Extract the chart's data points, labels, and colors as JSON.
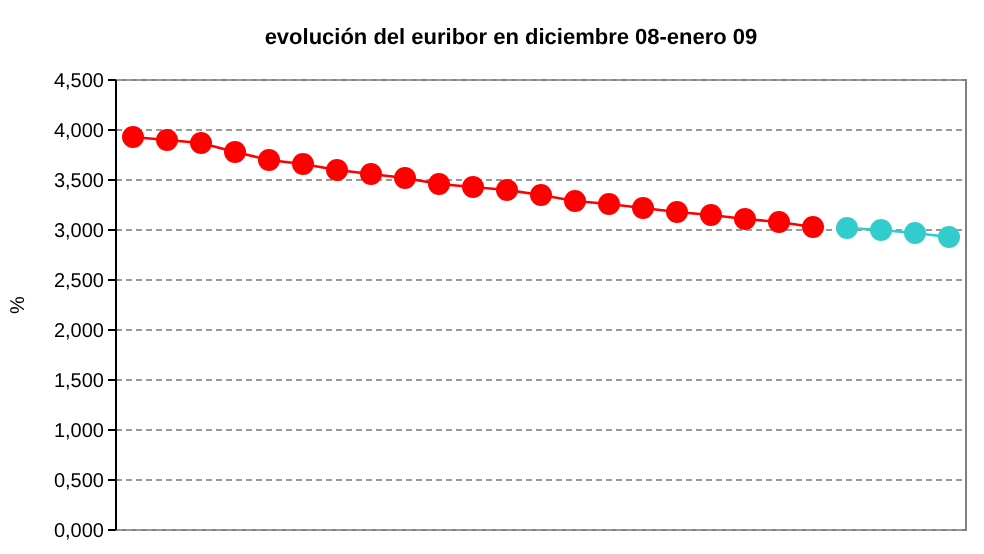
{
  "chart_data": {
    "type": "line",
    "title": "evolución del euribor en diciembre 08-enero 09",
    "ylabel": "%",
    "categories": [
      null,
      null,
      null,
      null,
      null,
      null,
      null,
      null,
      null,
      null,
      null,
      null,
      null,
      null,
      null,
      null,
      null,
      null,
      null,
      null,
      null,
      null,
      null,
      null,
      null
    ],
    "series": [
      {
        "color": "#ff0000",
        "values": [
          3.93,
          3.9,
          3.87,
          3.78,
          3.7,
          3.66,
          3.6,
          3.56,
          3.52,
          3.46,
          3.43,
          3.4,
          3.35,
          3.29,
          3.26,
          3.22,
          3.18,
          3.15,
          3.11,
          3.08,
          3.03,
          null,
          null,
          null,
          null
        ]
      },
      {
        "color": "#33cccc",
        "values": [
          null,
          null,
          null,
          null,
          null,
          null,
          null,
          null,
          null,
          null,
          null,
          null,
          null,
          null,
          null,
          null,
          null,
          null,
          null,
          null,
          null,
          3.02,
          3.0,
          2.97,
          2.93
        ]
      }
    ],
    "ylim": [
      0,
      4.5
    ],
    "yticks": [
      {
        "value": 0,
        "label": "0,000"
      },
      {
        "value": 0.5,
        "label": "0,500"
      },
      {
        "value": 1,
        "label": "1,000"
      },
      {
        "value": 1.5,
        "label": "1,500"
      },
      {
        "value": 2,
        "label": "2,000"
      },
      {
        "value": 2.5,
        "label": "2,500"
      },
      {
        "value": 3,
        "label": "3,000"
      },
      {
        "value": 3.5,
        "label": "3,500"
      },
      {
        "value": 4,
        "label": "4,000"
      },
      {
        "value": 4.5,
        "label": "4,500"
      }
    ],
    "grid": "y",
    "marker": "circle",
    "line_style": "solid"
  }
}
